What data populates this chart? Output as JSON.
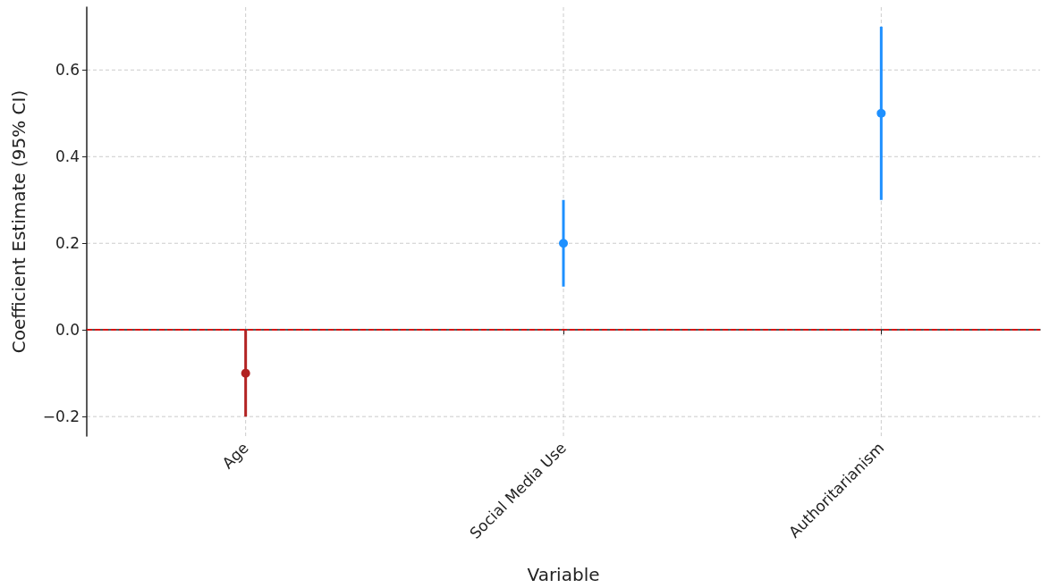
{
  "chart_data": {
    "type": "scatter",
    "xlabel": "Variable",
    "ylabel": "Coefficient Estimate (95% CI)",
    "categories": [
      "Age",
      "Social Media Use",
      "Authoritarianism"
    ],
    "values": [
      -0.1,
      0.2,
      0.5
    ],
    "colors": [
      "#b22222",
      "#1e90ff",
      "#1e90ff"
    ],
    "errors": [
      [
        -0.2,
        0.0
      ],
      [
        0.1,
        0.3
      ],
      [
        0.3,
        0.7
      ]
    ],
    "ylim": [
      -0.245,
      0.745
    ],
    "yticks": [
      {
        "value": -0.2,
        "label": "−0.2"
      },
      {
        "value": 0,
        "label": "0.0"
      },
      {
        "value": 0.2,
        "label": "0.2"
      },
      {
        "value": 0.4,
        "label": "0.4"
      },
      {
        "value": 0.6,
        "label": "0.6"
      }
    ],
    "ref_lines": [
      {
        "axis": "y",
        "value": 0,
        "color": "#ff0000",
        "line_style": "dashed"
      }
    ],
    "grid": true,
    "marker": "circle"
  }
}
